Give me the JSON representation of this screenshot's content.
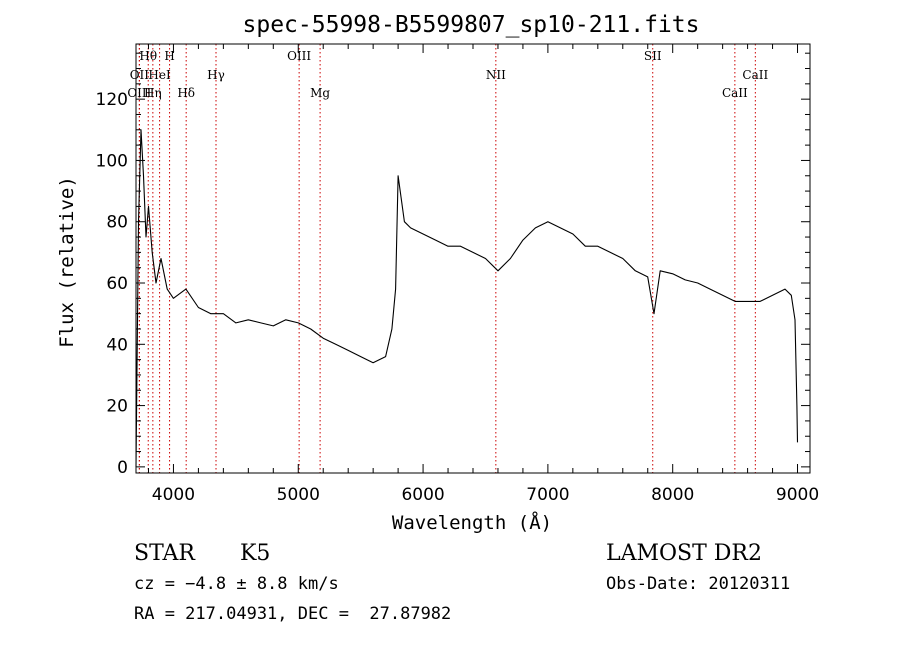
{
  "chart_data": {
    "type": "line",
    "title": "spec-55998-B5599807_sp10-211.fits",
    "xlabel": "Wavelength (Å)",
    "ylabel": "Flux (relative)",
    "xlim": [
      3700,
      9100
    ],
    "ylim": [
      -2,
      138
    ],
    "x_ticks": [
      4000,
      5000,
      6000,
      7000,
      8000,
      9000
    ],
    "y_ticks": [
      0,
      20,
      40,
      60,
      80,
      100,
      120
    ],
    "grid": false,
    "line_color": "#000000",
    "marker_line_color": "#cc0000",
    "spectral_lines": [
      {
        "name": "Hθ",
        "wavelength": 3798,
        "row": 0
      },
      {
        "name": "H",
        "wavelength": 3969,
        "row": 0
      },
      {
        "name": "OII",
        "wavelength": 3727,
        "row": 1
      },
      {
        "name": "HeI",
        "wavelength": 3889,
        "row": 1
      },
      {
        "name": "OIII",
        "wavelength": 3727,
        "row": 2
      },
      {
        "name": "Hη",
        "wavelength": 3835,
        "row": 2
      },
      {
        "name": "Hδ",
        "wavelength": 4102,
        "row": 2
      },
      {
        "name": "Hγ",
        "wavelength": 4341,
        "row": 1
      },
      {
        "name": "OIII",
        "wavelength": 5007,
        "row": 0
      },
      {
        "name": "Mg",
        "wavelength": 5175,
        "row": 2
      },
      {
        "name": "NII",
        "wavelength": 6583,
        "row": 1
      },
      {
        "name": "SII",
        "wavelength": 7840,
        "row": 0
      },
      {
        "name": "CaII",
        "wavelength": 8498,
        "row": 2
      },
      {
        "name": "CaII",
        "wavelength": 8662,
        "row": 1
      }
    ],
    "series": [
      {
        "x": [
          3700,
          3720,
          3740,
          3760,
          3780,
          3800,
          3830,
          3860,
          3900,
          3950,
          4000,
          4100,
          4200,
          4300,
          4400,
          4500,
          4600,
          4700,
          4800,
          4900,
          5000,
          5100,
          5200,
          5300,
          5400,
          5500,
          5600,
          5700,
          5750,
          5780,
          5800,
          5850,
          5900,
          6000,
          6100,
          6200,
          6300,
          6400,
          6500,
          6600,
          6700,
          6800,
          6900,
          7000,
          7100,
          7200,
          7300,
          7400,
          7500,
          7600,
          7700,
          7800,
          7850,
          7900,
          8000,
          8100,
          8200,
          8300,
          8400,
          8500,
          8600,
          8700,
          8800,
          8900,
          8950,
          8980,
          8995,
          9000
        ],
        "y": [
          0,
          80,
          110,
          95,
          75,
          85,
          70,
          60,
          68,
          58,
          55,
          58,
          52,
          50,
          50,
          47,
          48,
          47,
          46,
          48,
          47,
          45,
          42,
          40,
          38,
          36,
          34,
          36,
          45,
          58,
          95,
          80,
          78,
          76,
          74,
          72,
          72,
          70,
          68,
          64,
          68,
          74,
          78,
          80,
          78,
          76,
          72,
          72,
          70,
          68,
          64,
          62,
          50,
          64,
          63,
          61,
          60,
          58,
          56,
          54,
          54,
          54,
          56,
          58,
          56,
          48,
          20,
          8
        ]
      }
    ]
  },
  "footer": {
    "object_class": "STAR",
    "subclass": "K5",
    "velocity": "cz = −4.8 ± 8.8 km/s",
    "coords": "RA = 217.04931, DEC =  27.87982",
    "survey": "LAMOST DR2",
    "obs_date": "Obs-Date: 20120311"
  }
}
